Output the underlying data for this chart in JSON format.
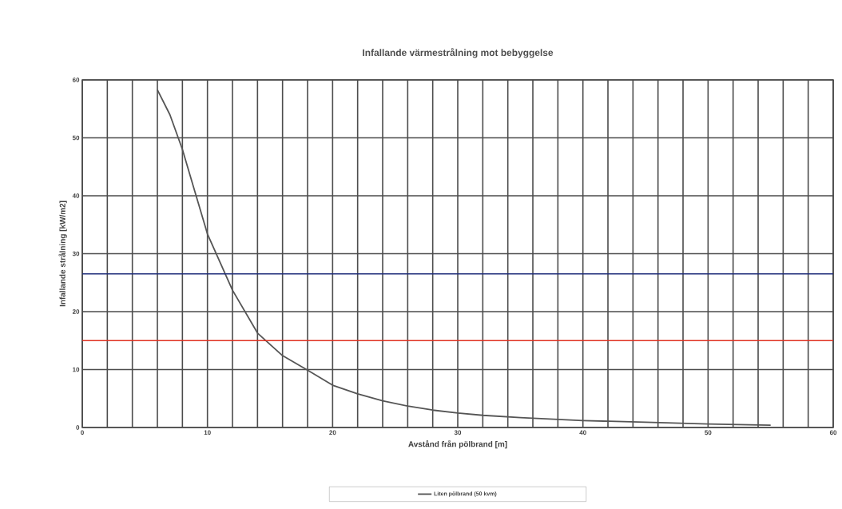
{
  "chart_data": {
    "type": "line",
    "title": "Infallande värmestrålning mot bebyggelse",
    "xlabel": "Avstånd från pölbrand [m]",
    "ylabel": "Infallande strålning [kW/m2]",
    "x": [
      6,
      7,
      8,
      9,
      10,
      12,
      14,
      16,
      18,
      20,
      22,
      24,
      26,
      28,
      30,
      32,
      35,
      40,
      45,
      50,
      55
    ],
    "series": [
      {
        "name": "Liten pölbrand (50 kvm)",
        "color": "#555555",
        "values": [
          58.3,
          54,
          48,
          40.7,
          33.4,
          23.7,
          16.3,
          12.4,
          9.9,
          7.3,
          5.8,
          4.6,
          3.7,
          3.0,
          2.5,
          2.1,
          1.7,
          1.2,
          0.9,
          0.6,
          0.4
        ]
      }
    ],
    "xlim": [
      0,
      60
    ],
    "ylim": [
      0,
      60
    ],
    "xticks": [
      0,
      10,
      20,
      30,
      40,
      50,
      60
    ],
    "yticks": [
      0,
      10,
      20,
      30,
      40,
      50,
      60
    ],
    "ref_lines": [
      {
        "axis": "y",
        "value": 26.5,
        "color": "#1f2d7a"
      },
      {
        "axis": "y",
        "value": 15,
        "color": "#e03020"
      }
    ],
    "grid": true,
    "legend": "bottom",
    "marker": "none",
    "line_style": "solid"
  }
}
